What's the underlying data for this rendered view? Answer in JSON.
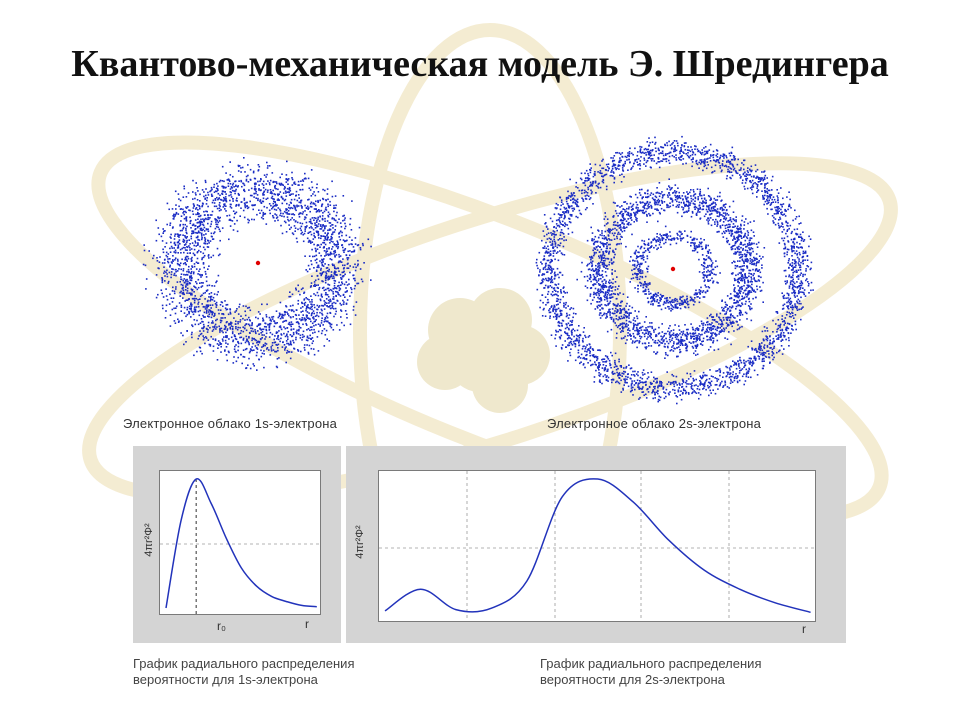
{
  "slide": {
    "title": "Квантово-механическая модель Э. Шредингера"
  },
  "clouds": [
    {
      "caption": "Электронное облако 1s-электрона",
      "nucleus_color": "#e00000",
      "dot_color": "#1a2cc4"
    },
    {
      "caption": "Электронное облако 2s-электрона",
      "nucleus_color": "#e00000",
      "dot_color": "#1a2cc4"
    }
  ],
  "graphs": [
    {
      "ylabel": "4πr²Φ²",
      "xtick_r0": "r₀",
      "xtick_r": "r",
      "caption_line1": "График радиального распределения",
      "caption_line2": "вероятности для 1s-электрона"
    },
    {
      "ylabel": "4πr²Φ²",
      "xtick_r": "r",
      "caption_line1": "График радиального распределения",
      "caption_line2": "вероятности для 2s-электрона"
    }
  ],
  "chart_data": [
    {
      "type": "line",
      "series": [
        {
          "x": [
            0,
            0.5,
            1,
            1.5,
            2,
            2.5,
            3,
            3.5,
            4,
            4.5,
            5
          ],
          "y": [
            0,
            0.68,
            1.0,
            0.81,
            0.54,
            0.31,
            0.17,
            0.09,
            0.05,
            0.02,
            0.01
          ]
        }
      ]
    },
    {
      "type": "line",
      "series": [
        {
          "x": [
            0,
            1,
            2,
            3,
            4,
            5,
            6,
            7,
            8,
            9,
            10,
            11,
            12
          ],
          "y": [
            0.03,
            0.19,
            0.04,
            0.05,
            0.25,
            0.87,
            1.0,
            0.83,
            0.55,
            0.33,
            0.19,
            0.09,
            0.02
          ]
        }
      ]
    }
  ],
  "colors": {
    "curve": "#2233bb",
    "panel": "#d4d4d4",
    "grid": "#9a9a9a",
    "background_motif": "#f2ead0"
  }
}
